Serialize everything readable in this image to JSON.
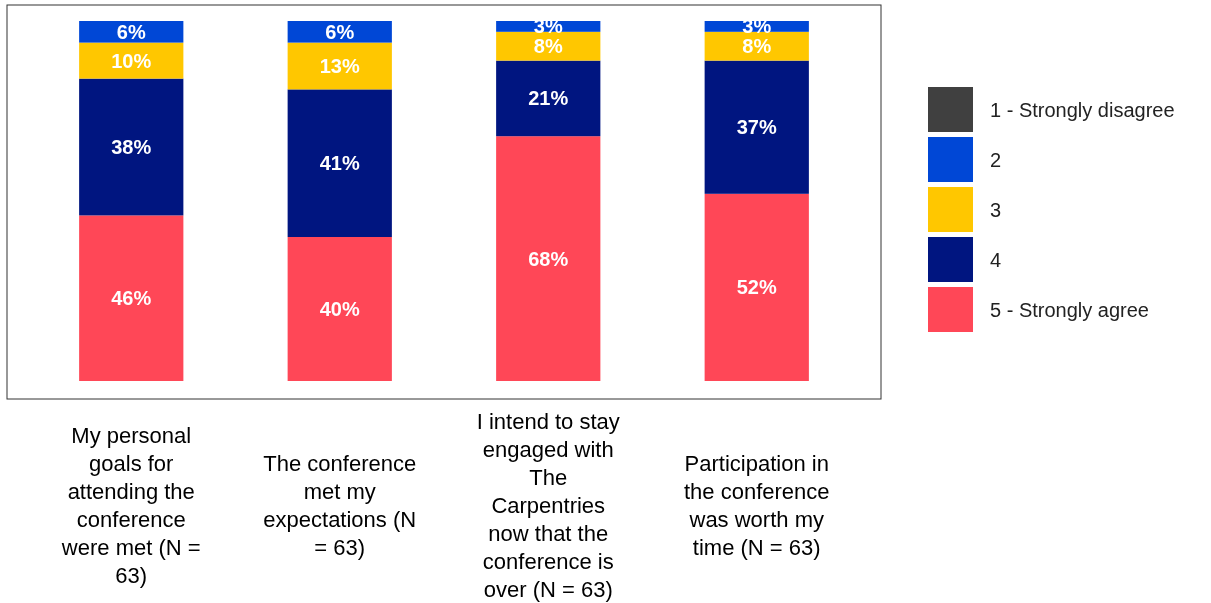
{
  "chart_data": {
    "type": "bar",
    "stacked": true,
    "categories": [
      "My personal goals for attending the conference were met (N = 63)",
      "The conference met my expectations (N = 63)",
      "I intend to stay engaged with The Carpentries now that the conference is over (N = 63)",
      "Participation in the conference was worth my time (N = 63)"
    ],
    "ylim": [
      0,
      100
    ],
    "tick_labels": "x",
    "legend": "right",
    "series": [
      {
        "name": "5 - Strongly agree",
        "color": "#ff4757",
        "values": [
          46,
          40,
          68,
          52
        ],
        "value_labels": [
          "46%",
          "40%",
          "68%",
          "52%"
        ]
      },
      {
        "name": "4",
        "color": "#001580",
        "values": [
          38,
          41,
          21,
          37
        ],
        "value_labels": [
          "38%",
          "41%",
          "21%",
          "37%"
        ]
      },
      {
        "name": "3",
        "color": "#ffc700",
        "values": [
          10,
          13,
          8,
          8
        ],
        "value_labels": [
          "10%",
          "13%",
          "8%",
          "8%"
        ]
      },
      {
        "name": "2",
        "color": "#0047d6",
        "values": [
          6,
          6,
          3,
          3
        ],
        "value_labels": [
          "6%",
          "6%",
          "3%",
          "3%"
        ]
      },
      {
        "name": "1 - Strongly disagree",
        "color": "#404040",
        "values": [
          0,
          0,
          0,
          0
        ],
        "value_labels": [
          null,
          null,
          null,
          null
        ]
      }
    ]
  }
}
